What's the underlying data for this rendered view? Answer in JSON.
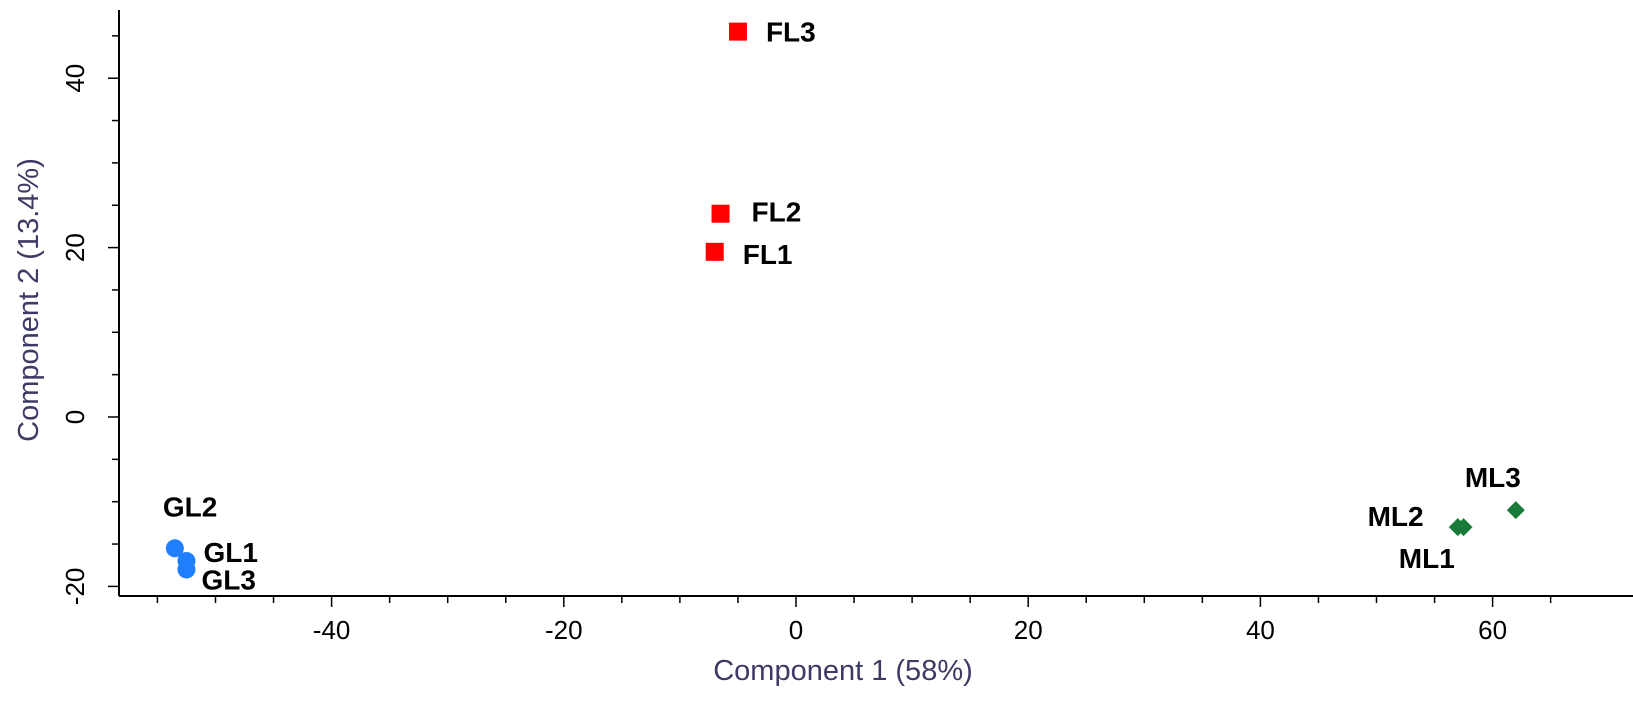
{
  "chart_data": {
    "type": "scatter",
    "xlabel": "Component 1 (58%)",
    "ylabel": "Component 2 (13.4%)",
    "xlim": [
      -58,
      67
    ],
    "ylim": [
      -21,
      48
    ],
    "x_ticks": [
      -40,
      -20,
      0,
      20,
      40,
      60
    ],
    "y_ticks": [
      -20,
      0,
      20,
      40
    ],
    "x_tick_labels": [
      "-40",
      "-20",
      "0",
      "20",
      "40",
      "60"
    ],
    "y_tick_labels": [
      "-20",
      "0",
      "20",
      "40"
    ],
    "grid": false,
    "series": [
      {
        "marker": "square",
        "color": "#ff0000",
        "points": [
          {
            "label": "FL1",
            "x": -7,
            "y": 19.5
          },
          {
            "label": "FL2",
            "x": -6.5,
            "y": 24
          },
          {
            "label": "FL3",
            "x": -5,
            "y": 45.5
          }
        ]
      },
      {
        "marker": "circle",
        "color": "#1f7fff",
        "points": [
          {
            "label": "GL1",
            "x": -52.5,
            "y": -17
          },
          {
            "label": "GL2",
            "x": -53.5,
            "y": -15.5
          },
          {
            "label": "GL3",
            "x": -52.5,
            "y": -18
          }
        ]
      },
      {
        "marker": "diamond",
        "color": "#1a7a3a",
        "points": [
          {
            "label": "ML1",
            "x": 57,
            "y": -13
          },
          {
            "label": "ML2",
            "x": 57.5,
            "y": -13
          },
          {
            "label": "ML3",
            "x": 62,
            "y": -11
          }
        ]
      }
    ]
  }
}
